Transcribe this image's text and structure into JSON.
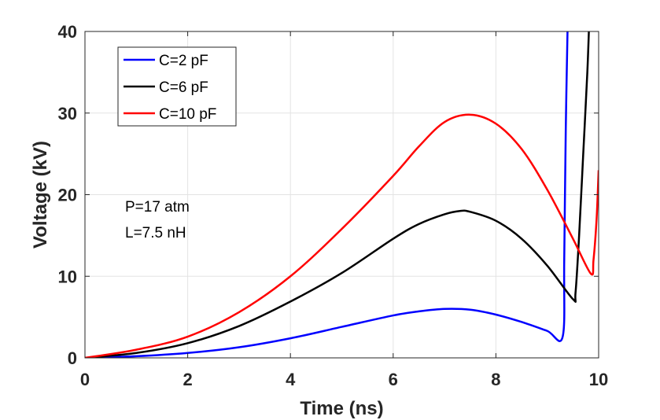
{
  "chart_data": {
    "type": "line",
    "xlabel": "Time (ns)",
    "ylabel": "Voltage (kV)",
    "xlim": [
      0,
      10
    ],
    "ylim": [
      0,
      40
    ],
    "xticks": [
      "0",
      "2",
      "4",
      "6",
      "8",
      "10"
    ],
    "yticks": [
      "0",
      "10",
      "20",
      "30",
      "40"
    ],
    "grid": true,
    "legend_position": "top-left",
    "annotations": [
      "P=17 atm",
      "L=7.5 nH"
    ],
    "series": [
      {
        "name": "C=2 pF",
        "color": "#0000ff",
        "x": [
          0,
          1,
          2,
          3,
          4,
          5,
          6,
          6.5,
          7,
          7.5,
          8,
          8.5,
          9,
          9.3,
          9.33,
          9.36,
          9.4
        ],
        "y": [
          0,
          0.2,
          0.6,
          1.3,
          2.4,
          3.8,
          5.2,
          5.7,
          6.0,
          5.9,
          5.3,
          4.4,
          3.3,
          2.6,
          12,
          28,
          42
        ]
      },
      {
        "name": "C=6 pF",
        "color": "#000000",
        "x": [
          0,
          1,
          2,
          3,
          4,
          5,
          6,
          6.5,
          7,
          7.3,
          7.5,
          8,
          8.5,
          9,
          9.5,
          9.55,
          9.62,
          9.7,
          9.78,
          9.82
        ],
        "y": [
          0,
          0.6,
          1.8,
          3.9,
          6.9,
          10.4,
          14.6,
          16.4,
          17.6,
          18.0,
          17.9,
          16.8,
          14.6,
          11.3,
          7.2,
          8,
          15,
          25,
          35,
          42
        ]
      },
      {
        "name": "C=10 pF",
        "color": "#ff0000",
        "x": [
          0,
          1,
          2,
          3,
          4,
          5,
          6,
          6.5,
          7,
          7.5,
          8,
          8.5,
          9,
          9.5,
          9.85,
          9.9,
          9.96,
          10
        ],
        "y": [
          0,
          1.0,
          2.6,
          5.6,
          10.0,
          15.8,
          22.3,
          25.9,
          28.9,
          29.8,
          28.7,
          25.6,
          20.6,
          14.6,
          10.3,
          12,
          17,
          23
        ]
      }
    ]
  }
}
